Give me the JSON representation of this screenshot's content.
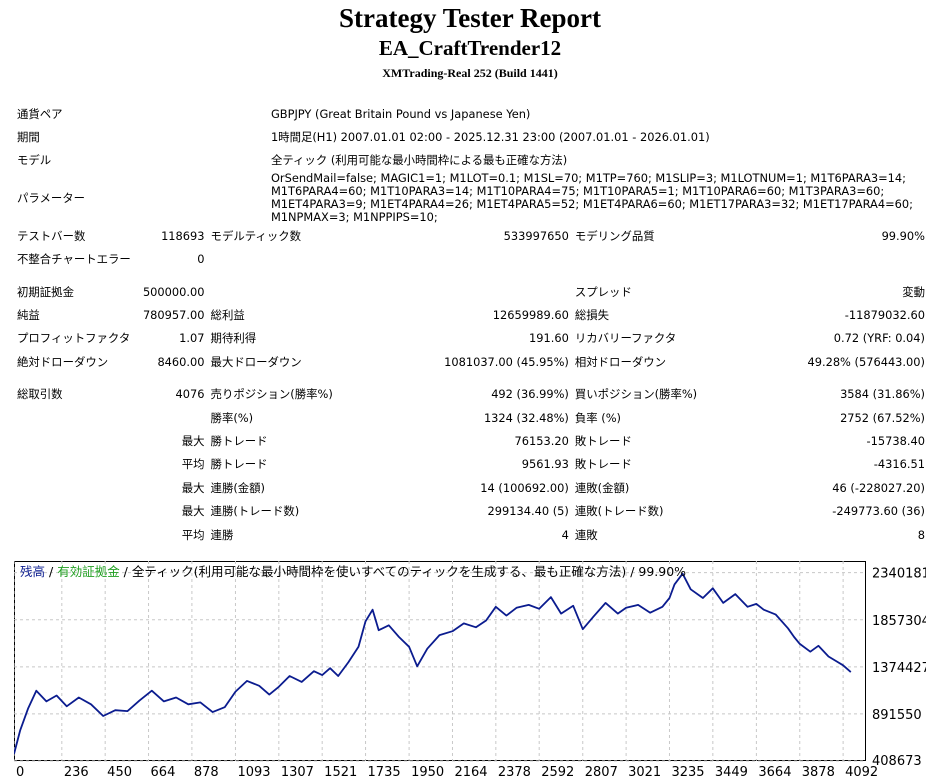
{
  "header": {
    "title": "Strategy Tester Report",
    "expert": "EA_CraftTrender12",
    "server": "XMTrading-Real 252 (Build 1441)"
  },
  "settings": {
    "symbol_label": "通貨ペア",
    "symbol": "GBPJPY (Great Britain Pound vs Japanese Yen)",
    "period_label": "期間",
    "period": "1時間足(H1) 2007.01.01 02:00 - 2025.12.31 23:00 (2007.01.01 - 2026.01.01)",
    "model_label": "モデル",
    "model": "全ティック (利用可能な最小時間枠による最も正確な方法)",
    "params_label": "パラメーター",
    "params": "OrSendMail=false; MAGIC1=1; M1LOT=0.1; M1SL=70; M1TP=760; M1SLIP=3; M1LOTNUM=1; M1T6PARA3=14; M1T6PARA4=60; M1T10PARA3=14; M1T10PARA4=75; M1T10PARA5=1; M1T10PARA6=60; M1T3PARA3=60; M1ET4PARA3=9; M1ET4PARA4=26; M1ET4PARA5=52; M1ET4PARA6=60; M1ET17PARA3=32; M1ET17PARA4=60; M1NPMAX=3; M1NPPIPS=10;"
  },
  "quality": {
    "bars_label": "テストバー数",
    "bars": "118693",
    "ticks_label": "モデルティック数",
    "ticks": "533997650",
    "quality_label": "モデリング品質",
    "quality": "99.90%",
    "mismatch_label": "不整合チャートエラー",
    "mismatch": "0"
  },
  "results": {
    "deposit_label": "初期証拠金",
    "deposit": "500000.00",
    "spread_label": "スプレッド",
    "spread": "変動",
    "net_label": "純益",
    "net": "780957.00",
    "gross_profit_label": "総利益",
    "gross_profit": "12659989.60",
    "gross_loss_label": "総損失",
    "gross_loss": "-11879032.60",
    "pf_label": "プロフィットファクタ",
    "pf": "1.07",
    "expected_label": "期待利得",
    "expected": "191.60",
    "recovery_label": "リカバリーファクタ",
    "recovery": "0.72 (YRF: 0.04)",
    "abs_dd_label": "絶対ドローダウン",
    "abs_dd": "8460.00",
    "max_dd_label": "最大ドローダウン",
    "max_dd": "1081037.00 (45.95%)",
    "rel_dd_label": "相対ドローダウン",
    "rel_dd": "49.28% (576443.00)"
  },
  "trades": {
    "total_label": "総取引数",
    "total": "4076",
    "short_label": "売りポジション(勝率%)",
    "short": "492 (36.99%)",
    "long_label": "買いポジション(勝率%)",
    "long": "3584 (31.86%)",
    "win_pct_label": "勝率(%)",
    "win_pct": "1324 (32.48%)",
    "loss_pct_label": "負率 (%)",
    "loss_pct": "2752 (67.52%)",
    "max_prefix": "最大",
    "avg_prefix": "平均",
    "largest_win_label": "勝トレード",
    "largest_win": "76153.20",
    "largest_loss_label": "敗トレード",
    "largest_loss": "-15738.40",
    "avg_win_label": "勝トレード",
    "avg_win": "9561.93",
    "avg_loss_label": "敗トレード",
    "avg_loss": "-4316.51",
    "max_cons_wins_label": "連勝(金額)",
    "max_cons_wins": "14 (100692.00)",
    "max_cons_losses_label": "連敗(金額)",
    "max_cons_losses": "46 (-228027.20)",
    "max_cons_profit_label": "連勝(トレード数)",
    "max_cons_profit": "299134.40 (5)",
    "max_cons_loss_label": "連敗(トレード数)",
    "max_cons_loss": "-249773.60 (36)",
    "avg_cons_wins_label": "連勝",
    "avg_cons_wins": "4",
    "avg_cons_losses_label": "連敗",
    "avg_cons_losses": "8"
  },
  "chart_data": {
    "type": "line",
    "legend": {
      "balance": "残高",
      "sep1": " / ",
      "equity": "有効証拠金",
      "rest": " / 全ティック(利用可能な最小時間枠を使いすべてのティックを生成する、最も正確な方法) / 99.90%"
    },
    "colors": {
      "balance": "#0b1c8f",
      "equity": "#22a022",
      "grid": "#c8c8c8"
    },
    "x_ticks": [
      0,
      236,
      450,
      664,
      878,
      1093,
      1307,
      1521,
      1735,
      1950,
      2164,
      2378,
      2592,
      2807,
      3021,
      3235,
      3449,
      3664,
      3878,
      4092
    ],
    "y_ticks": [
      2340181,
      1857304,
      1374427,
      891550,
      408673
    ],
    "xlim": [
      0,
      4200
    ],
    "ylim": [
      408673,
      2460000
    ],
    "grid": true,
    "series": [
      {
        "name": "残高",
        "x": [
          0,
          30,
          70,
          110,
          160,
          210,
          260,
          320,
          380,
          440,
          500,
          560,
          620,
          680,
          740,
          800,
          860,
          920,
          980,
          1040,
          1093,
          1150,
          1210,
          1260,
          1307,
          1360,
          1420,
          1480,
          1521,
          1560,
          1600,
          1650,
          1700,
          1735,
          1770,
          1800,
          1850,
          1900,
          1950,
          1990,
          2040,
          2100,
          2164,
          2220,
          2280,
          2330,
          2378,
          2430,
          2480,
          2540,
          2592,
          2650,
          2700,
          2760,
          2807,
          2860,
          2920,
          2980,
          3021,
          3080,
          3140,
          3200,
          3235,
          3260,
          3300,
          3340,
          3400,
          3449,
          3500,
          3560,
          3620,
          3664,
          3700,
          3760,
          3820,
          3850,
          3878,
          3930,
          3970,
          4020,
          4060,
          4092,
          4130
        ],
        "values": [
          480000,
          720000,
          950000,
          1130000,
          1020000,
          1080000,
          970000,
          1060000,
          990000,
          870000,
          930000,
          920000,
          1030000,
          1130000,
          1020000,
          1060000,
          990000,
          1010000,
          910000,
          960000,
          1120000,
          1230000,
          1180000,
          1090000,
          1170000,
          1280000,
          1220000,
          1330000,
          1290000,
          1360000,
          1280000,
          1420000,
          1580000,
          1840000,
          1960000,
          1750000,
          1800000,
          1680000,
          1580000,
          1380000,
          1560000,
          1700000,
          1740000,
          1820000,
          1780000,
          1850000,
          1990000,
          1900000,
          1980000,
          2010000,
          1970000,
          2090000,
          1920000,
          2000000,
          1760000,
          1890000,
          2030000,
          1920000,
          1980000,
          2010000,
          1930000,
          1990000,
          2080000,
          2220000,
          2330000,
          2170000,
          2080000,
          2180000,
          2030000,
          2120000,
          1990000,
          2020000,
          1960000,
          1910000,
          1770000,
          1680000,
          1610000,
          1530000,
          1590000,
          1480000,
          1430000,
          1390000,
          1320000
        ]
      }
    ]
  }
}
